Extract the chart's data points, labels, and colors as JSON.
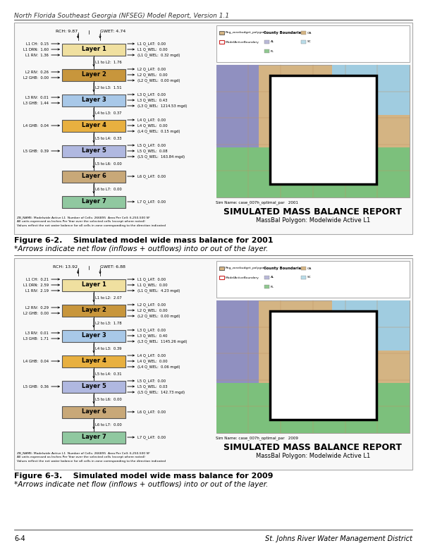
{
  "page_title": "North Florida Southeast Georgia (NFSEG) Model Report, Version 1.1",
  "page_bg": "#ffffff",
  "figure_caption_1a": "Figure 6-2.    Simulated model wide mass balance for 2001",
  "figure_caption_1b": "*Arrows indicate net flow (inflows + outflows) into or out of the layer.",
  "figure_caption_2a": "Figure 6-3.    Simulated model wide mass balance for 2009",
  "figure_caption_2b": "*Arrows indicate net flow (inflows + outflows) into or out of the layer.",
  "footer_left": "6-4",
  "footer_right": "St. Johns River Water Management District",
  "sim_name_label": "Sim Name: case_007h_optimal_par",
  "report_title": "SIMULATED MASS BALANCE REPORT",
  "report_subtitle": "MassBal Polygon: Modelwide Active L1",
  "zb_note_line1": "ZB_NAME: Modelwide Active L1  Number of Cells: 266895  Area Per Cell: 6,250,500 SF",
  "zb_note_line2": "All units expressed as Inches Per Year over the selected cells (except where noted)",
  "zb_note_line3": "Values reflect the net water balance for all cells in zone corresponding to the direction indicated",
  "legend_color_ga": "#d4b483",
  "legend_color_al": "#b8b8d8",
  "legend_color_sc": "#b8dce8",
  "legend_color_fl": "#90c890",
  "map_bg": "#d4b483",
  "map_purple": "#9090c0",
  "map_green": "#7cc07c",
  "map_cyan": "#a0cce0",
  "map_white": "#ffffff",
  "panel1": {
    "rch": "9.87",
    "gwet": "4.74",
    "year": "2001",
    "layers": [
      {
        "name": "Layer 1",
        "color": "#f0e0a0",
        "inputs": [
          "L1 CH:  0.15",
          "L1 DRN:  1.60",
          "L1 RIV:  1.36"
        ],
        "outputs": [
          "L1 Q_LAT:  0.00",
          "L1 Q_WEL:  0.00",
          "(L1 Q_WEL:  0.32 mgd)"
        ],
        "flow_down": "L1 to L2:  1.76"
      },
      {
        "name": "Layer 2",
        "color": "#c8963c",
        "inputs": [
          "L2 RIV:  0.26",
          "L2 GHB:  0.00"
        ],
        "outputs": [
          "L2 Q_LAT:  0.00",
          "L2 Q_WEL:  0.00",
          "(L2 Q_WEL:  0.00 mgd)"
        ],
        "flow_down": "L2 to L3:  1.51"
      },
      {
        "name": "Layer 3",
        "color": "#a8c8e8",
        "inputs": [
          "L3 RIV:  0.01",
          "L3 GHB:  1.44"
        ],
        "outputs": [
          "L3 Q_LAT:  0.00",
          "L3 Q_WEL:  0.43",
          "(L3 Q_WEL:  1214.53 mgd)"
        ],
        "flow_down": "L4 to L3:  0.37"
      },
      {
        "name": "Layer 4",
        "color": "#e8b040",
        "inputs": [
          "L4 GHB:  0.04"
        ],
        "outputs": [
          "L4 Q_LAT:  0.00",
          "L4 Q_WEL:  0.00",
          "(L4 Q_WEL:  0.15 mgd)"
        ],
        "flow_down": "L5 to L4:  0.33"
      },
      {
        "name": "Layer 5",
        "color": "#b0b8e0",
        "inputs": [
          "L5 GHB:  0.39"
        ],
        "outputs": [
          "L5 Q_LAT:  0.00",
          "L5 Q_WEL:  0.08",
          "(L5 Q_WEL:  163.84 mgd)"
        ],
        "flow_down": "L5 to L6:  0.00"
      },
      {
        "name": "Layer 6",
        "color": "#c8a878",
        "inputs": [],
        "outputs": [
          "L6 Q_LAT:  0.00"
        ],
        "flow_down": "L6 to L7:  0.00"
      },
      {
        "name": "Layer 7",
        "color": "#90c8a0",
        "inputs": [],
        "outputs": [
          "L7 Q_LAT:  0.00"
        ],
        "flow_down": null
      }
    ]
  },
  "panel2": {
    "rch": "13.92",
    "gwet": "6.88",
    "year": "2009",
    "layers": [
      {
        "name": "Layer 1",
        "color": "#f0e0a0",
        "inputs": [
          "L1 CH:  0.21",
          "L1 DRN:  2.59",
          "L1 RIV:  2.19"
        ],
        "outputs": [
          "L1 Q_LAT:  0.00",
          "L1 Q_WEL:  0.00",
          "(L1 Q_WEL:  4.23 mgd)"
        ],
        "flow_down": "L1 to L2:  2.07"
      },
      {
        "name": "Layer 2",
        "color": "#c8963c",
        "inputs": [
          "L2 RIV:  0.29",
          "L2 GHB:  0.00"
        ],
        "outputs": [
          "L2 Q_LAT:  0.00",
          "L2 Q_WEL:  0.00",
          "(L2 Q_WEL:  0.00 mgd)"
        ],
        "flow_down": "L2 to L3:  1.78"
      },
      {
        "name": "Layer 3",
        "color": "#a8c8e8",
        "inputs": [
          "L3 RIV:  0.01",
          "L3 GHB:  1.71"
        ],
        "outputs": [
          "L3 Q_LAT:  0.00",
          "L3 Q_WEL:  0.40",
          "(L3 Q_WEL:  1145.26 mgd)"
        ],
        "flow_down": "L4 to L3:  0.39"
      },
      {
        "name": "Layer 4",
        "color": "#e8b040",
        "inputs": [
          "L4 GHB:  0.04"
        ],
        "outputs": [
          "L4 Q_LAT:  0.00",
          "L4 Q_WEL:  0.00",
          "(L4 Q_WEL:  0.06 mgd)"
        ],
        "flow_down": "L5 to L4:  0.31"
      },
      {
        "name": "Layer 5",
        "color": "#b0b8e0",
        "inputs": [
          "L5 GHB:  0.36"
        ],
        "outputs": [
          "L5 Q_LAT:  0.00",
          "L5 Q_WEL:  0.03",
          "(L5 Q_WEL:  142.73 mgd)"
        ],
        "flow_down": "L5 to L6:  0.00"
      },
      {
        "name": "Layer 6",
        "color": "#c8a878",
        "inputs": [],
        "outputs": [
          "L6 Q_LAT:  0.00"
        ],
        "flow_down": "L6 to L7:  0.00"
      },
      {
        "name": "Layer 7",
        "color": "#90c8a0",
        "inputs": [],
        "outputs": [
          "L7 Q_LAT:  0.00"
        ],
        "flow_down": null
      }
    ]
  }
}
